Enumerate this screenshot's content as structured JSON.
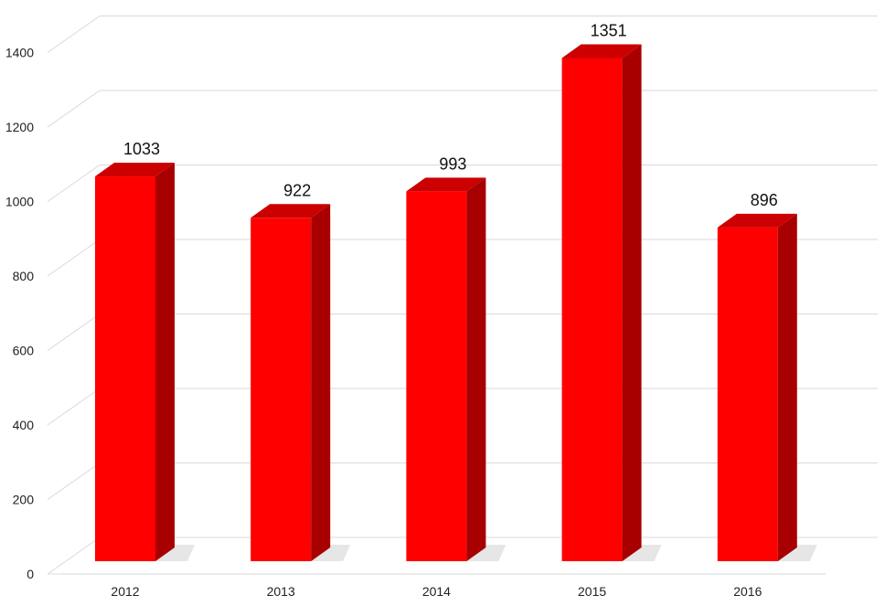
{
  "chart_data": {
    "type": "bar",
    "title": "",
    "xlabel": "",
    "ylabel": "",
    "categories": [
      "2012",
      "2013",
      "2014",
      "2015",
      "2016"
    ],
    "values": [
      1033,
      922,
      993,
      1351,
      896
    ],
    "data_labels": [
      "1033",
      "922",
      "993",
      "1351",
      "896"
    ],
    "ylim": [
      0,
      1400
    ],
    "yticks": [
      0,
      200,
      400,
      600,
      800,
      1000,
      1200,
      1400
    ],
    "ytick_labels": [
      "0",
      "200",
      "400",
      "600",
      "800",
      "1000",
      "1200",
      "1400"
    ],
    "grid": true,
    "legend": "none",
    "style": "3d-column",
    "colors": {
      "bar_front": "#ff0000",
      "bar_side": "#a80000",
      "bar_top": "#cc0000",
      "grid": "#d9d9d9",
      "shadow": "#e3e3e3"
    }
  }
}
